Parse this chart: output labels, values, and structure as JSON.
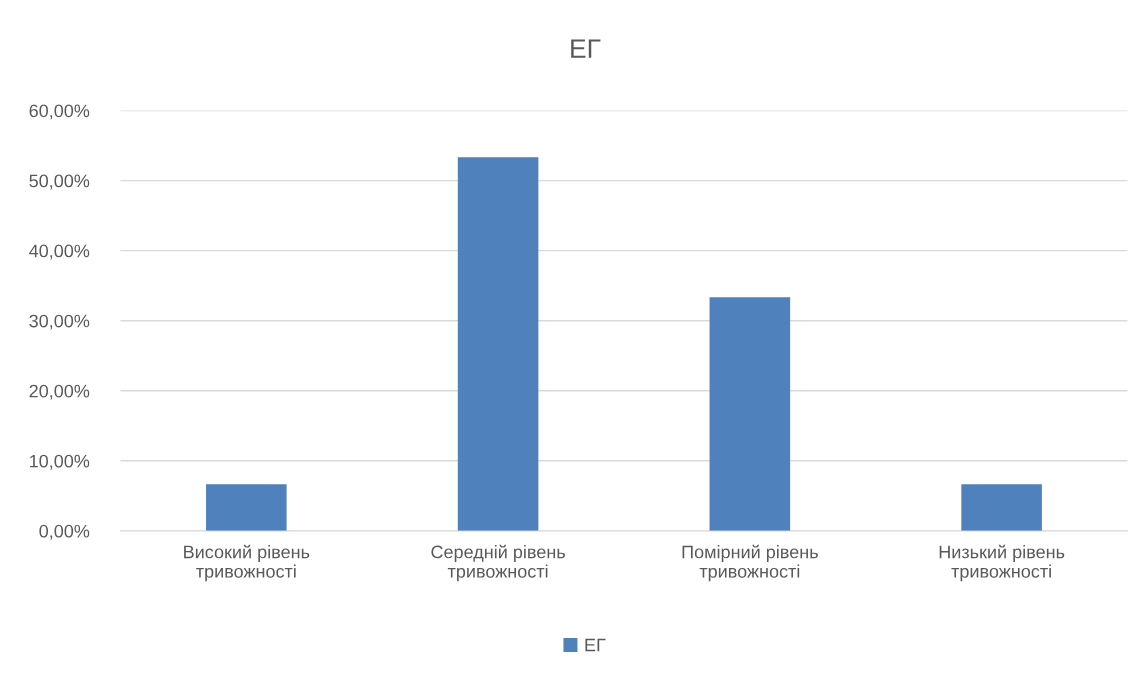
{
  "chart_data": {
    "type": "bar",
    "title": "ЕГ",
    "categories": [
      "Високий рівень тривожності",
      "Середній рівень тривожності",
      "Помірний рівень тривожності",
      "Низький рівень тривожності"
    ],
    "series": [
      {
        "name": "ЕГ",
        "color": "#4f81bd",
        "values": [
          6.67,
          53.33,
          33.33,
          6.67
        ]
      }
    ],
    "ylim": [
      0,
      60
    ],
    "yticks": [
      {
        "value": 0,
        "label": "0,00%"
      },
      {
        "value": 10,
        "label": "10,00%"
      },
      {
        "value": 20,
        "label": "20,00%"
      },
      {
        "value": 30,
        "label": "30,00%"
      },
      {
        "value": 40,
        "label": "40,00%"
      },
      {
        "value": 50,
        "label": "50,00%"
      },
      {
        "value": 60,
        "label": "60,00%"
      }
    ],
    "grid": "y",
    "legend": "bottom"
  }
}
